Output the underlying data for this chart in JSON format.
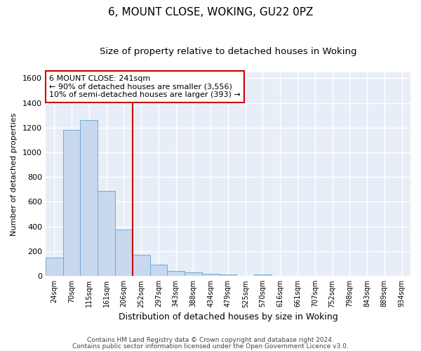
{
  "title": "6, MOUNT CLOSE, WOKING, GU22 0PZ",
  "subtitle": "Size of property relative to detached houses in Woking",
  "xlabel": "Distribution of detached houses by size in Woking",
  "ylabel": "Number of detached properties",
  "footnote1": "Contains HM Land Registry data © Crown copyright and database right 2024.",
  "footnote2": "Contains public sector information licensed under the Open Government Licence v3.0.",
  "bar_labels": [
    "24sqm",
    "70sqm",
    "115sqm",
    "161sqm",
    "206sqm",
    "252sqm",
    "297sqm",
    "343sqm",
    "388sqm",
    "434sqm",
    "479sqm",
    "525sqm",
    "570sqm",
    "616sqm",
    "661sqm",
    "707sqm",
    "752sqm",
    "798sqm",
    "843sqm",
    "889sqm",
    "934sqm"
  ],
  "bar_values": [
    150,
    1180,
    1260,
    690,
    375,
    170,
    90,
    38,
    28,
    18,
    15,
    0,
    15,
    0,
    0,
    0,
    0,
    0,
    0,
    0,
    0
  ],
  "bar_color": "#c8d8ee",
  "bar_edge_color": "#6baed6",
  "vline_x_idx": 5,
  "vline_color": "#cc0000",
  "annotation_line1": "6 MOUNT CLOSE: 241sqm",
  "annotation_line2": "← 90% of detached houses are smaller (3,556)",
  "annotation_line3": "10% of semi-detached houses are larger (393) →",
  "annotation_box_color": "#ffffff",
  "annotation_box_edge": "#cc0000",
  "ylim": [
    0,
    1650
  ],
  "yticks": [
    0,
    200,
    400,
    600,
    800,
    1000,
    1200,
    1400,
    1600
  ],
  "bg_color": "#ffffff",
  "plot_bg_color": "#e8eef8",
  "grid_color": "#ffffff",
  "title_fontsize": 11,
  "subtitle_fontsize": 9.5,
  "annotation_fontsize": 8,
  "footnote_fontsize": 6.5,
  "xlabel_fontsize": 9,
  "ylabel_fontsize": 8
}
